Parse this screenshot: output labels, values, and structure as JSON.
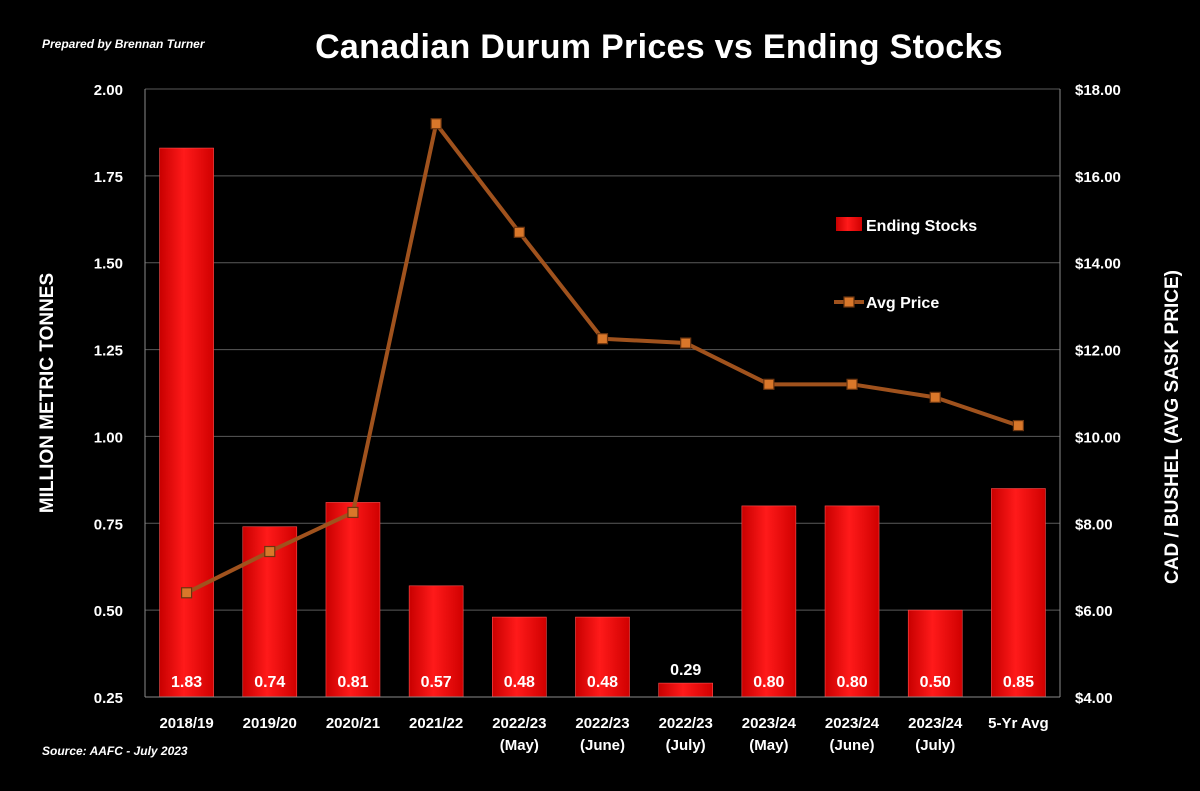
{
  "header": {
    "credit": "Prepared by Brennan Turner",
    "title": "Canadian Durum Prices vs Ending Stocks",
    "source": "Source: AAFC - July 2023"
  },
  "chart_data": {
    "type": "bar",
    "title": "Canadian Durum Prices vs Ending Stocks",
    "categories": [
      [
        "2018/19"
      ],
      [
        "2019/20"
      ],
      [
        "2020/21"
      ],
      [
        "2021/22"
      ],
      [
        "2022/23",
        "(May)"
      ],
      [
        "2022/23",
        "(June)"
      ],
      [
        "2022/23",
        "(July)"
      ],
      [
        "2023/24",
        "(May)"
      ],
      [
        "2023/24",
        "(June)"
      ],
      [
        "2023/24",
        "(July)"
      ],
      [
        "5-Yr Avg"
      ]
    ],
    "ylabel_left": "MILLION METRIC TONNES",
    "ylabel_right": "CAD / BUSHEL (AVG SASK PRICE)",
    "ylim_left": [
      0.25,
      2.0
    ],
    "yticks_left": [
      "0.25",
      "0.50",
      "0.75",
      "1.00",
      "1.25",
      "1.50",
      "1.75",
      "2.00"
    ],
    "ylim_right": [
      4,
      18
    ],
    "yticks_right": [
      "$4.00",
      "$6.00",
      "$8.00",
      "$10.00",
      "$12.00",
      "$14.00",
      "$16.00",
      "$18.00"
    ],
    "grid": true,
    "legend_position": "right-center",
    "series": [
      {
        "name": "Ending Stocks",
        "type": "bar",
        "axis": "left",
        "color": "#ff0000",
        "values": [
          1.83,
          0.74,
          0.81,
          0.57,
          0.48,
          0.48,
          0.29,
          0.8,
          0.8,
          0.5,
          0.85
        ],
        "labels": [
          "1.83",
          "0.74",
          "0.81",
          "0.57",
          "0.48",
          "0.48",
          "0.29",
          "0.80",
          "0.80",
          "0.50",
          "0.85"
        ]
      },
      {
        "name": "Avg Price",
        "type": "line",
        "axis": "right",
        "color": "#a0521d",
        "values": [
          6.4,
          7.35,
          8.25,
          17.2,
          14.7,
          12.25,
          12.15,
          11.2,
          11.2,
          10.9,
          10.25
        ]
      }
    ]
  }
}
